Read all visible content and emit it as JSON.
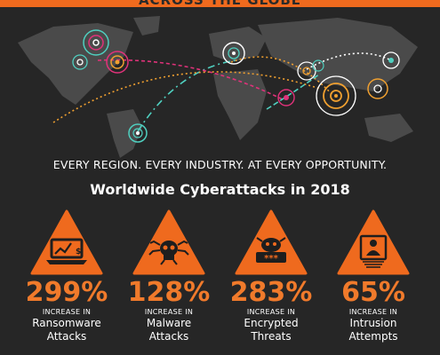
{
  "header": {
    "banner_text": "ACROSS THE GLOBE"
  },
  "tagline": "EVERY REGION. EVERY INDUSTRY. AT EVERY OPPORTUNITY.",
  "heading": "Worldwide Cyberattacks in 2018",
  "colors": {
    "accent": "#ef6a1e",
    "background": "#262626",
    "pink": "#e0327a",
    "teal": "#4fd0c0"
  },
  "stats": [
    {
      "value": "299%",
      "caption": "INCREASE IN",
      "label_line1": "Ransomware",
      "label_line2": "Attacks",
      "icon": "laptop-ransom-icon"
    },
    {
      "value": "128%",
      "caption": "INCREASE IN",
      "label_line1": "Malware",
      "label_line2": "Attacks",
      "icon": "skull-bug-icon"
    },
    {
      "value": "283%",
      "caption": "INCREASE IN",
      "label_line1": "Encrypted",
      "label_line2": "Threats",
      "icon": "encrypted-password-icon"
    },
    {
      "value": "65%",
      "caption": "INCREASE IN",
      "label_line1": "Intrusion",
      "label_line2": "Attempts",
      "icon": "hacker-screen-icon"
    }
  ]
}
